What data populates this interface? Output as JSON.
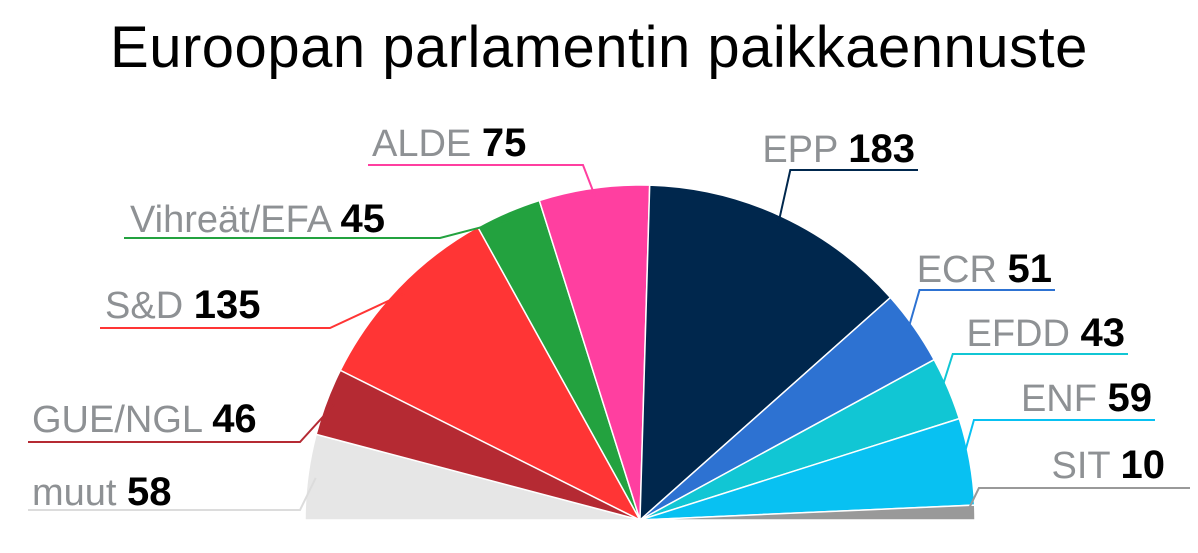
{
  "title": "Euroopan parlamentin paikkaennuste",
  "chart_data": {
    "type": "pie",
    "subtype": "semicircle",
    "categories": [
      "muut",
      "GUE/NGL",
      "S&D",
      "Vihreät/EFA",
      "ALDE",
      "EPP",
      "ECR",
      "EFDD",
      "ENF",
      "SIT"
    ],
    "values": [
      58,
      46,
      135,
      45,
      75,
      183,
      51,
      43,
      59,
      10
    ],
    "colors": [
      "#e6e6e6",
      "#b52a33",
      "#ff3535",
      "#23a23f",
      "#ff3fa0",
      "#00274d",
      "#2d72d2",
      "#11c6d4",
      "#08c1f2",
      "#999999"
    ]
  }
}
